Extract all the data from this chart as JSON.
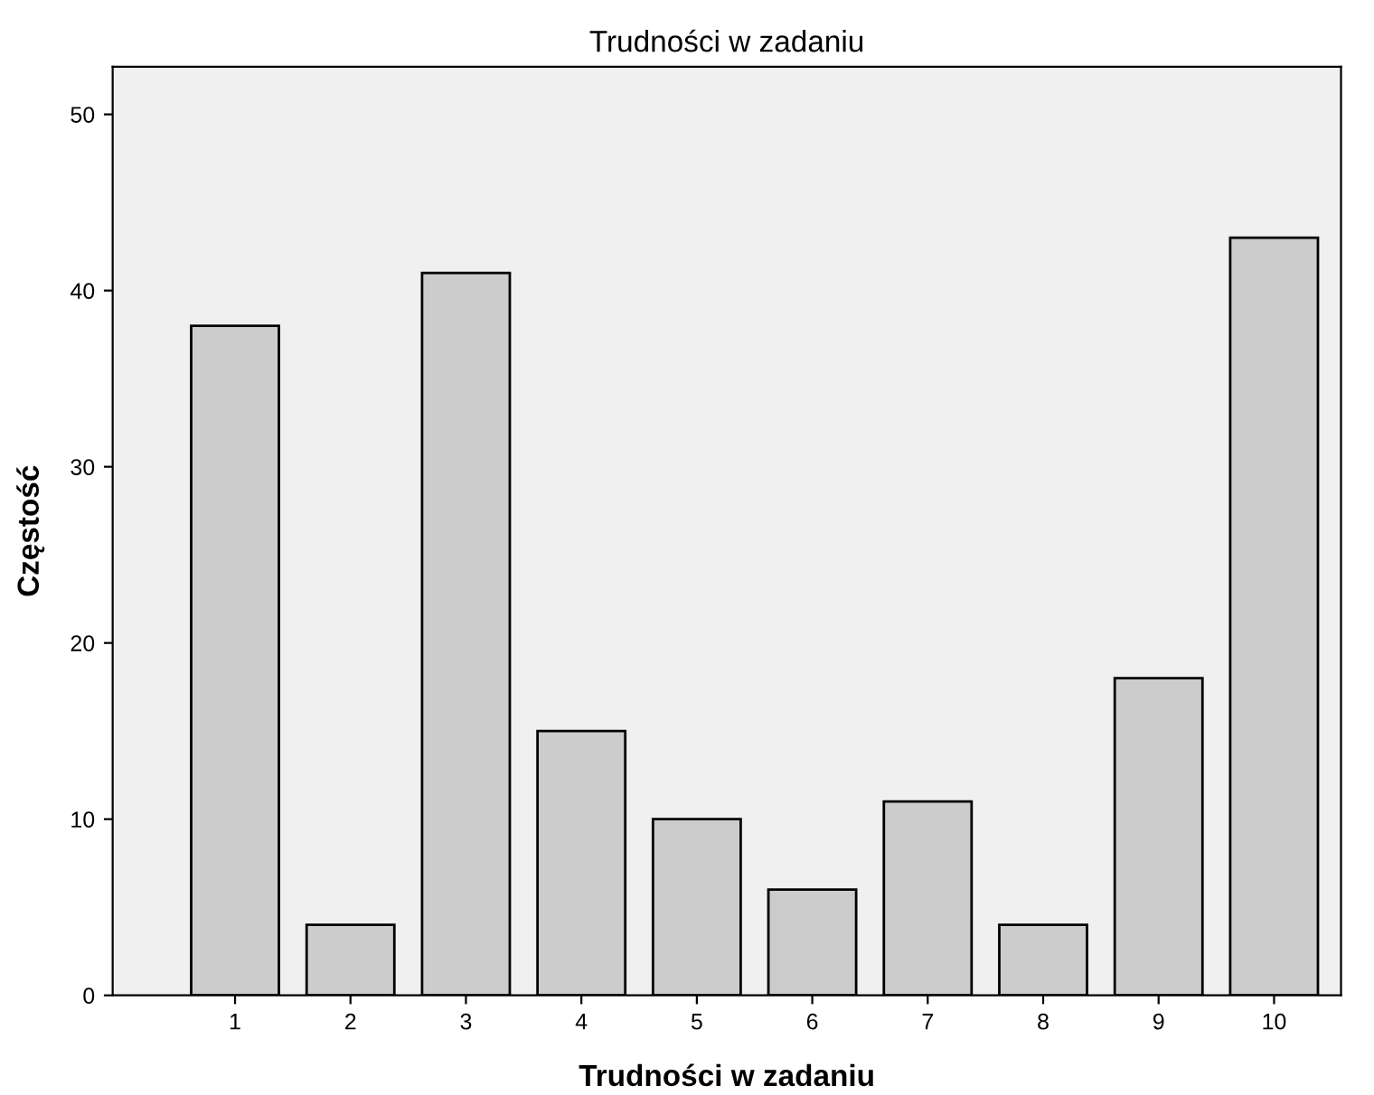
{
  "chart_data": {
    "type": "bar",
    "title": "Trudności w zadaniu",
    "xlabel": "Trudności w zadaniu",
    "ylabel": "Częstość",
    "categories": [
      "1",
      "2",
      "3",
      "4",
      "5",
      "6",
      "7",
      "8",
      "9",
      "10"
    ],
    "values": [
      38,
      4,
      41,
      15,
      10,
      6,
      11,
      4,
      18,
      43
    ],
    "color": "#cccccc",
    "ylim": [
      0,
      52.7
    ],
    "yticks": [
      0,
      10,
      20,
      30,
      40,
      50
    ],
    "grid": false,
    "legend": false
  }
}
